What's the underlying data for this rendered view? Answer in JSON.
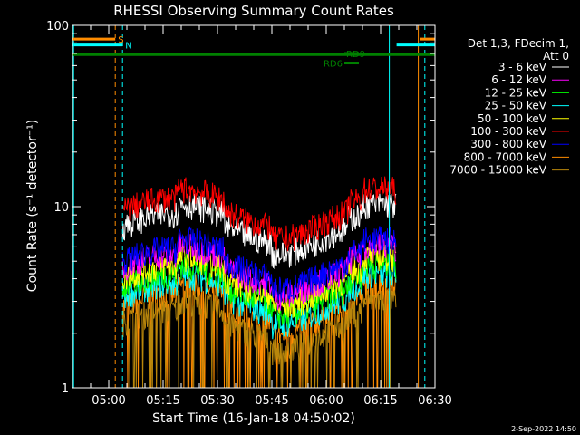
{
  "chart_data": {
    "type": "line",
    "title": "RHESSI Observing Summary Count Rates",
    "xlabel": "Start Time (16-Jan-18 04:50:02)",
    "ylabel": "Count Rate (s⁻¹ detector⁻¹)",
    "yscale": "log",
    "xlim_minutes_after_start": [
      0,
      100
    ],
    "ylim": [
      1,
      100
    ],
    "x_ticks": [
      "05:00",
      "05:15",
      "05:30",
      "05:45",
      "06:00",
      "06:15",
      "06:30"
    ],
    "x_tick_minutes": [
      10,
      25,
      40,
      55,
      70,
      85,
      100
    ],
    "y_ticks": [
      "1",
      "10",
      "100"
    ],
    "y_tick_values": [
      1,
      10,
      100
    ],
    "legend_header": [
      "Det 1,3, FDecim 1,",
      "Att 0"
    ],
    "legend_position": "right",
    "series": [
      {
        "name": "3 - 6 keV",
        "color": "#ffffff",
        "level": 7.8
      },
      {
        "name": "6 - 12 keV",
        "color": "#ff00ff",
        "level": 4.6
      },
      {
        "name": "12 - 25 keV",
        "color": "#00ff00",
        "level": 3.6
      },
      {
        "name": "25 - 50 keV",
        "color": "#00ffff",
        "level": 3.2
      },
      {
        "name": "50 - 100 keV",
        "color": "#ffff00",
        "level": 4.0
      },
      {
        "name": "100 - 300 keV",
        "color": "#ff0000",
        "level": 9.5
      },
      {
        "name": "300 - 800 keV",
        "color": "#0000ff",
        "level": 5.0
      },
      {
        "name": "800 - 7000 keV",
        "color": "#ff8c00",
        "level": 2.8
      },
      {
        "name": "7000 - 15000 keV",
        "color": "#b8860b",
        "level": 2.3
      }
    ],
    "data_window_minutes": [
      13.8,
      89.4
    ],
    "annotations": {
      "flags": [
        {
          "label": "S",
          "color": "#ff8c00",
          "y": 84,
          "x_range": [
            0,
            11.8
          ]
        },
        {
          "label": "N",
          "color": "#00ffff",
          "y": 78,
          "x_range": [
            0,
            13.8
          ]
        },
        {
          "label": "",
          "color": "#00ffff",
          "y": 78,
          "x_range": [
            89.4,
            100
          ]
        },
        {
          "label": "",
          "color": "#ff8c00",
          "y": 84,
          "x_range": [
            95.8,
            100
          ]
        },
        {
          "label": "",
          "color": "#008000",
          "y": 69,
          "x_range": [
            0,
            100
          ]
        },
        {
          "label": "RD9",
          "color": "#008000",
          "y": 70,
          "x_range": [
            75,
            79
          ]
        },
        {
          "label": "RD6",
          "color": "#008000",
          "y": 62,
          "x_range": [
            75,
            79
          ]
        }
      ],
      "vlines": [
        {
          "x": 11.8,
          "color": "#ff8c00",
          "dashed": true
        },
        {
          "x": 13.8,
          "color": "#00ffff",
          "dashed": true
        },
        {
          "x": 0.3,
          "color": "#00ffff",
          "dashed": false
        },
        {
          "x": 87.4,
          "color": "#00ffff",
          "dashed": false
        },
        {
          "x": 95.4,
          "color": "#ff8c00",
          "dashed": false
        },
        {
          "x": 97.2,
          "color": "#00ffff",
          "dashed": true
        }
      ]
    }
  },
  "timestamp": "2-Sep-2022 14:50"
}
